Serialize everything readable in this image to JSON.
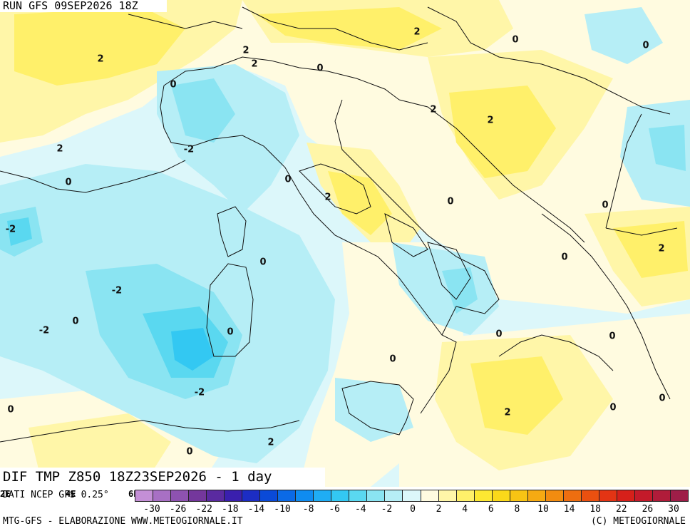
{
  "header": {
    "run_label": "RUN GFS 09SEP2026 18Z",
    "title": "DIF TMP Z850 18Z23SEP2026 - 1 day"
  },
  "legend": {
    "source": "DATI NCEP GFS 0.25°",
    "axis_fragments": [
      "2E",
      "4E",
      "6E"
    ],
    "color_steps": [
      "#c48fd6",
      "#a870c4",
      "#8e52b0",
      "#74379c",
      "#5a2aa0",
      "#3a1fae",
      "#1c2dc4",
      "#0a4ad8",
      "#0b6ae6",
      "#0f8cf0",
      "#1fadf4",
      "#33c8f2",
      "#5ad8f0",
      "#8ae4f2",
      "#b6eef6",
      "#dcf7fa",
      "#fffbe0",
      "#fff6a8",
      "#fff06a",
      "#fde832",
      "#fbd91a",
      "#f8c414",
      "#f6aa12",
      "#f28c10",
      "#ee6e10",
      "#ea5010",
      "#e33414",
      "#d6201a",
      "#c41a2a",
      "#b01c3a",
      "#9e1e48"
    ],
    "ticks": [
      "-30",
      "-26",
      "-22",
      "-18",
      "-14",
      "-10",
      "-8",
      "-6",
      "-4",
      "-2",
      "0",
      "2",
      "4",
      "6",
      "8",
      "10",
      "14",
      "18",
      "22",
      "26",
      "30"
    ],
    "credit_left": "MTG-GFS - ELABORAZIONE WWW.METEOGIORNALE.IT",
    "credit_right": "(C) METEOGIORNALE"
  },
  "map": {
    "colors": {
      "sea_base": "#dcf7fa",
      "neg2": "#b6eef6",
      "neg3": "#8ae4f2",
      "neg4": "#5ad8f0",
      "neg5": "#33c8f2",
      "pos0": "#fffbe0",
      "pos1": "#fff6a8",
      "pos2": "#fff06a",
      "pos3": "#fde832",
      "border": "#111111"
    },
    "contour_labels": [
      "2",
      "2",
      "2",
      "0",
      "2",
      "0",
      "0",
      "2",
      "2",
      "2",
      "2",
      "-2",
      "0",
      "0",
      "2",
      "0",
      "0",
      "-2",
      "-2",
      "0",
      "0",
      "0",
      "-2",
      "0",
      "0",
      "0",
      "-2",
      "0",
      "2",
      "0",
      "0",
      "0",
      "2",
      "0",
      "0"
    ]
  }
}
